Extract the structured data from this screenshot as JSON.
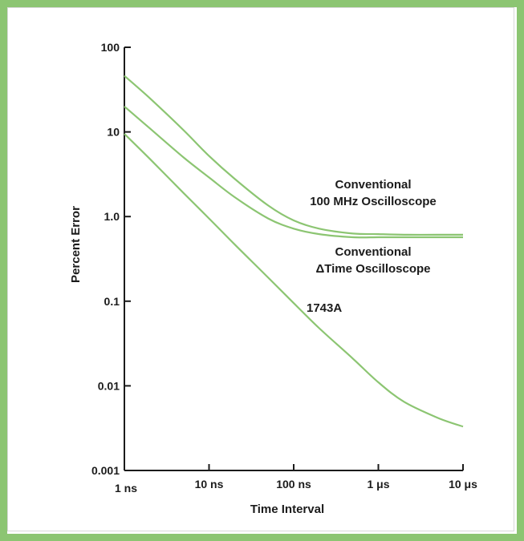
{
  "chart_data": {
    "type": "line",
    "xlabel": "Time Interval",
    "ylabel": "Percent Error",
    "x_scale": "log",
    "y_scale": "log",
    "xlim": [
      "1 ns",
      "10 µs"
    ],
    "ylim": [
      0.001,
      100
    ],
    "x_ticks": [
      {
        "label": "1 ns",
        "value_ns": 1
      },
      {
        "label": "10 ns",
        "value_ns": 10
      },
      {
        "label": "100 ns",
        "value_ns": 100
      },
      {
        "label": "1 μs",
        "value_ns": 1000
      },
      {
        "label": "10 μs",
        "value_ns": 10000
      }
    ],
    "y_ticks": [
      {
        "label": "100",
        "value": 100
      },
      {
        "label": "10",
        "value": 10
      },
      {
        "label": "1.0",
        "value": 1
      },
      {
        "label": "0.1",
        "value": 0.1
      },
      {
        "label": "0.01",
        "value": 0.01
      },
      {
        "label": "0.001",
        "value": 0.001
      }
    ],
    "grid": false,
    "line_color": "#8cc572",
    "series": [
      {
        "name": "Conventional 100 MHz Oscilloscope",
        "label_lines": [
          "Conventional",
          "100 MHz Oscilloscope"
        ],
        "points": [
          [
            1,
            46
          ],
          [
            2,
            25
          ],
          [
            5,
            10.5
          ],
          [
            10,
            5.2
          ],
          [
            20,
            2.8
          ],
          [
            50,
            1.35
          ],
          [
            100,
            0.9
          ],
          [
            200,
            0.72
          ],
          [
            500,
            0.63
          ],
          [
            1000,
            0.62
          ],
          [
            2000,
            0.61
          ],
          [
            5000,
            0.61
          ],
          [
            10000,
            0.61
          ]
        ]
      },
      {
        "name": "Conventional ΔTime Oscilloscope",
        "label_lines": [
          "Conventional",
          "ΔTime Oscilloscope"
        ],
        "points": [
          [
            1,
            20
          ],
          [
            2,
            11
          ],
          [
            5,
            5
          ],
          [
            10,
            2.9
          ],
          [
            20,
            1.7
          ],
          [
            50,
            0.95
          ],
          [
            100,
            0.72
          ],
          [
            200,
            0.62
          ],
          [
            500,
            0.57
          ],
          [
            1000,
            0.57
          ],
          [
            2000,
            0.57
          ],
          [
            5000,
            0.57
          ],
          [
            10000,
            0.57
          ]
        ]
      },
      {
        "name": "1743A",
        "label_lines": [
          "1743A"
        ],
        "points": [
          [
            1,
            9.5
          ],
          [
            2,
            4.8
          ],
          [
            5,
            1.9
          ],
          [
            10,
            0.95
          ],
          [
            20,
            0.47
          ],
          [
            50,
            0.19
          ],
          [
            100,
            0.095
          ],
          [
            200,
            0.048
          ],
          [
            500,
            0.021
          ],
          [
            1000,
            0.011
          ],
          [
            2000,
            0.0065
          ],
          [
            5000,
            0.0042
          ],
          [
            10000,
            0.0033
          ]
        ]
      }
    ]
  }
}
